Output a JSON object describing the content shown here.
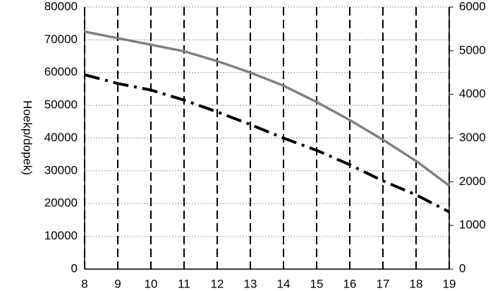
{
  "chart_data": {
    "type": "line",
    "y_label": "Hoekp/dopek)",
    "x": [
      8,
      9,
      10,
      11,
      12,
      13,
      14,
      15,
      16,
      17,
      18,
      19
    ],
    "xlim": [
      8,
      19
    ],
    "xticks": [
      8,
      9,
      10,
      11,
      12,
      13,
      14,
      15,
      16,
      17,
      18,
      19
    ],
    "ylim": [
      0,
      80000
    ],
    "yticks": [
      0,
      10000,
      20000,
      30000,
      40000,
      50000,
      60000,
      70000,
      80000
    ],
    "y2lim": [
      0,
      6000
    ],
    "y2ticks": [
      0,
      1000,
      2000,
      3000,
      4000,
      5000,
      6000
    ],
    "grid": true,
    "series": [
      {
        "color": "#808080",
        "style": "solid",
        "values": [
          72500,
          70500,
          68500,
          66500,
          63500,
          60000,
          56000,
          51000,
          45500,
          39500,
          33000,
          25500
        ]
      },
      {
        "color": "#000000",
        "style": "dashdot",
        "axis": "y2",
        "values": [
          4450,
          4250,
          4100,
          3870,
          3600,
          3310,
          3000,
          2720,
          2390,
          2020,
          1700,
          1310
        ]
      }
    ]
  }
}
